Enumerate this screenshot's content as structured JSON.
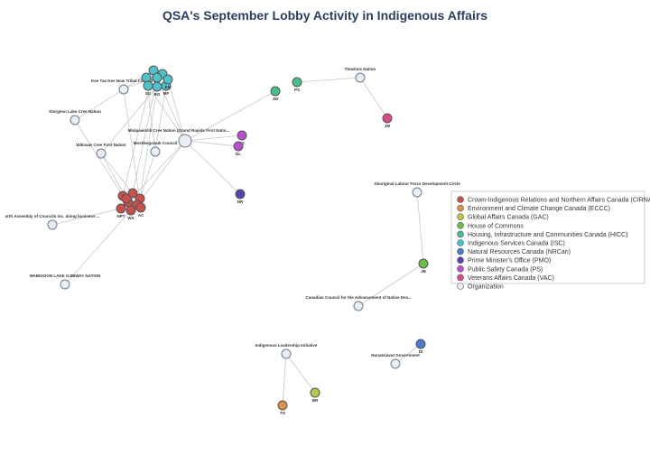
{
  "title": "QSA's September Lobby Activity in Indigenous Affairs",
  "legend": [
    {
      "name": "Crown-Indigenous Relations and Northern Affairs Canada (CIRNAC)",
      "color": "#c9504c"
    },
    {
      "name": "Environment and Climate Change Canada (ECCC)",
      "color": "#d8924a"
    },
    {
      "name": "Global Affairs Canada (GAC)",
      "color": "#b8c84a"
    },
    {
      "name": "House of Commons",
      "color": "#6cbf45"
    },
    {
      "name": "Housing, Infrastructure and Communities Canada (HICC)",
      "color": "#45c08c"
    },
    {
      "name": "Indigenous Services Canada (ISC)",
      "color": "#4ec3cc"
    },
    {
      "name": "Natural Resources Canada (NRCan)",
      "color": "#4a7bd0"
    },
    {
      "name": "Prime Minister's Office (PMO)",
      "color": "#5a3fb0"
    },
    {
      "name": "Public Safety Canada (PS)",
      "color": "#b64fd0"
    },
    {
      "name": "Veterans Affairs Canada (VAC)",
      "color": "#d64b8e"
    },
    {
      "name": "Organization",
      "color": "#e8eef4"
    }
  ],
  "nodes": [
    {
      "label": "Kee Tas Kee Now Tribal Council...",
      "group": 10
    },
    {
      "label": "Sturgeon Lake Cree Nation",
      "group": 10
    },
    {
      "label": "Wikisaw Cree First Nation",
      "group": 10
    },
    {
      "label": "Moshkegowuk Council",
      "group": 10
    },
    {
      "label": "Misipawistik Cree Nation (Grand Rapids First Natio...",
      "group": 10
    },
    {
      "label": "orth Assembly of Councils Inc. doing business ...",
      "group": 10
    },
    {
      "label": "WABIGOON LAKE OJIBWAY NATION",
      "group": 10
    },
    {
      "label": "Tlowitsis Nation",
      "group": 10
    },
    {
      "label": "Aboriginal Labour Force Development Circle",
      "group": 10
    },
    {
      "label": "Canadian Council for the Advancement of Native Dev...",
      "group": 10
    },
    {
      "label": "Indigenous Leadership Initiative",
      "group": 10
    },
    {
      "label": "Nunatsiavut Government",
      "group": 10
    },
    {
      "label": null,
      "group": 5
    },
    {
      "label": null,
      "group": 5
    },
    {
      "label": null,
      "group": 5
    },
    {
      "label": null,
      "group": 5
    },
    {
      "label": "SG",
      "group": 5
    },
    {
      "label": "RG",
      "group": 5
    },
    {
      "label": "MF",
      "group": 5
    },
    {
      "label": "EM",
      "group": 5
    },
    {
      "label": null,
      "group": 0
    },
    {
      "label": null,
      "group": 0
    },
    {
      "label": null,
      "group": 0
    },
    {
      "label": null,
      "group": 0
    },
    {
      "label": null,
      "group": 0
    },
    {
      "label": "NPT",
      "group": 0
    },
    {
      "label": "WS",
      "group": 0
    },
    {
      "label": "AC",
      "group": 0
    },
    {
      "label": null,
      "group": 0
    },
    {
      "label": "JW",
      "group": 4
    },
    {
      "label": "PS",
      "group": 4
    },
    {
      "label": "JM",
      "group": 9
    },
    {
      "label": "JG",
      "group": 8
    },
    {
      "label": "DL",
      "group": 8
    },
    {
      "label": "NR",
      "group": 7
    },
    {
      "label": "JB",
      "group": 3
    },
    {
      "label": "DI",
      "group": 6
    },
    {
      "label": "TO",
      "group": 1
    },
    {
      "label": "BR",
      "group": 2
    }
  ],
  "edges": [
    [
      12,
      0
    ],
    [
      13,
      0
    ],
    [
      12,
      1
    ],
    [
      14,
      3
    ],
    [
      15,
      4
    ],
    [
      16,
      4
    ],
    [
      17,
      2
    ],
    [
      12,
      20
    ],
    [
      15,
      21
    ],
    [
      17,
      22
    ],
    [
      18,
      3
    ],
    [
      20,
      1
    ],
    [
      21,
      2
    ],
    [
      22,
      3
    ],
    [
      23,
      4
    ],
    [
      24,
      4
    ],
    [
      25,
      5
    ],
    [
      26,
      6
    ],
    [
      27,
      0
    ],
    [
      28,
      2
    ],
    [
      4,
      29
    ],
    [
      4,
      32
    ],
    [
      4,
      33
    ],
    [
      4,
      34
    ],
    [
      30,
      7
    ],
    [
      7,
      31
    ],
    [
      8,
      35
    ],
    [
      35,
      9
    ],
    [
      10,
      37
    ],
    [
      10,
      38
    ],
    [
      11,
      36
    ],
    [
      19,
      4
    ]
  ]
}
